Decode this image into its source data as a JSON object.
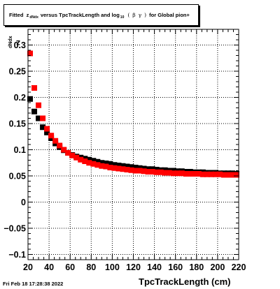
{
  "title": {
    "prefix": "Fitted",
    "z": "z",
    "z_sub": "dNdx",
    "middle": "versus TpcTrackLength and log",
    "log_sub": "10",
    "paren_open": "(",
    "beta": "β",
    "gamma": "γ",
    "paren_close": ")",
    "suffix": "for Global pion+"
  },
  "date_stamp": "Fri Feb 18 17:28:38 2022",
  "chart_data": {
    "type": "scatter",
    "xlabel": "TpcTrackLength (cm)",
    "ylabel": {
      "main": "z",
      "sub": "dNdx"
    },
    "xlim": [
      20,
      220
    ],
    "ylim": [
      -0.11,
      0.33
    ],
    "xticks": [
      20,
      40,
      60,
      80,
      100,
      120,
      140,
      160,
      180,
      200,
      220
    ],
    "yticks": [
      -0.1,
      -0.05,
      0,
      0.05,
      0.1,
      0.15,
      0.2,
      0.25,
      0.3
    ],
    "ytick_labels": [
      "−0.1",
      "−0.05",
      "0",
      "0.05",
      "0.1",
      "0.15",
      "0.2",
      "0.25",
      "0.3"
    ],
    "grid": true,
    "colors": {
      "series_black": "#000000",
      "series_red": "#ff0000"
    },
    "series": [
      {
        "color": "#000000",
        "x": [
          22,
          26,
          30,
          34,
          38,
          42,
          46,
          50,
          54,
          58,
          62,
          66,
          70,
          74,
          78,
          82,
          86,
          90,
          94,
          98,
          102,
          106,
          110,
          114,
          118,
          122,
          126,
          130,
          134,
          138,
          142,
          146,
          150,
          154,
          158,
          162,
          166,
          170,
          174,
          178,
          182,
          186,
          190,
          194,
          198,
          202,
          206,
          210,
          214,
          218
        ],
        "y": [
          0.197,
          0.173,
          0.16,
          0.143,
          0.133,
          0.122,
          0.112,
          0.105,
          0.099,
          0.094,
          0.09,
          0.087,
          0.085,
          0.083,
          0.081,
          0.079,
          0.077,
          0.075,
          0.074,
          0.073,
          0.071,
          0.07,
          0.069,
          0.068,
          0.067,
          0.066,
          0.065,
          0.064,
          0.063,
          0.063,
          0.062,
          0.061,
          0.061,
          0.06,
          0.06,
          0.059,
          0.059,
          0.058,
          0.058,
          0.057,
          0.057,
          0.057,
          0.056,
          0.056,
          0.056,
          0.055,
          0.055,
          0.055,
          0.055,
          0.054
        ]
      },
      {
        "color": "#ff0000",
        "x": [
          22,
          26,
          30,
          34,
          38,
          42,
          46,
          50,
          54,
          58,
          62,
          66,
          70,
          74,
          78,
          82,
          86,
          90,
          94,
          98,
          102,
          106,
          110,
          114,
          118,
          122,
          126,
          130,
          134,
          138,
          142,
          146,
          150,
          154,
          158,
          162,
          166,
          170,
          174,
          178,
          182,
          186,
          190,
          194,
          198,
          202,
          206,
          210,
          214,
          218
        ],
        "y": [
          0.284,
          0.218,
          0.185,
          0.16,
          0.14,
          0.127,
          0.117,
          0.108,
          0.1,
          0.094,
          0.089,
          0.085,
          0.081,
          0.078,
          0.075,
          0.073,
          0.071,
          0.069,
          0.068,
          0.066,
          0.065,
          0.064,
          0.063,
          0.062,
          0.061,
          0.06,
          0.06,
          0.059,
          0.058,
          0.058,
          0.057,
          0.057,
          0.056,
          0.056,
          0.055,
          0.055,
          0.055,
          0.054,
          0.054,
          0.054,
          0.054,
          0.053,
          0.053,
          0.053,
          0.053,
          0.053,
          0.052,
          0.052,
          0.052,
          0.052
        ]
      }
    ]
  }
}
